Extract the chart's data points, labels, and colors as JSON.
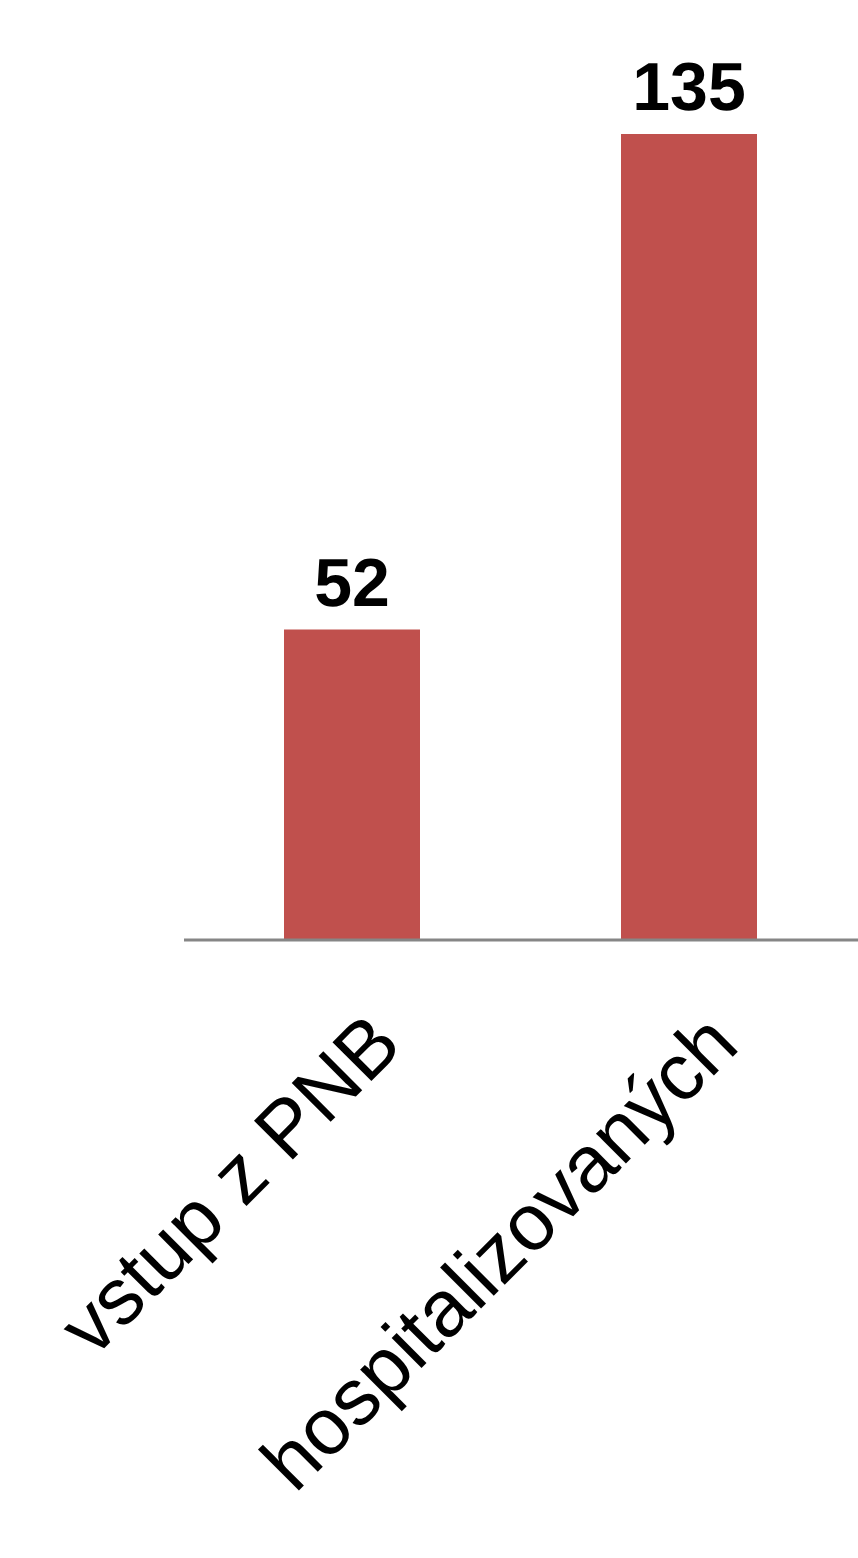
{
  "chart_data": {
    "type": "bar",
    "categories": [
      "vstup z PNB",
      "hospitalizovaných"
    ],
    "values": [
      52,
      135
    ],
    "color": "#c0504d",
    "data_labels": true
  }
}
